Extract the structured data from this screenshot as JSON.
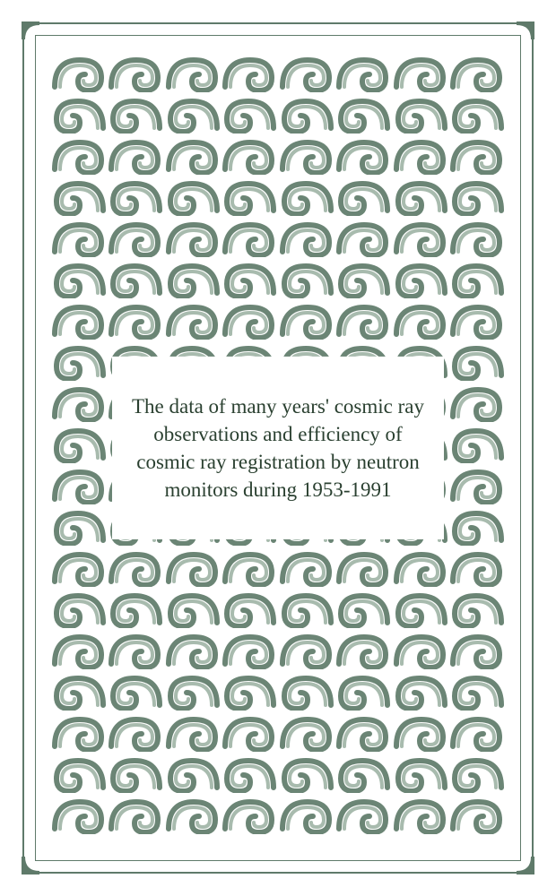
{
  "title": "The data of many years' cosmic ray observations and efficiency of cosmic ray registration by neutron monitors during 1953-1991",
  "colors": {
    "frame": "#5f7a6a",
    "wave_dark": "#6b8575",
    "wave_light": "#a8bbae",
    "background": "#ffffff",
    "text": "#2a4030"
  },
  "layout": {
    "pattern_rows": 19,
    "waves_per_row": 8,
    "title_fontsize": 23
  }
}
